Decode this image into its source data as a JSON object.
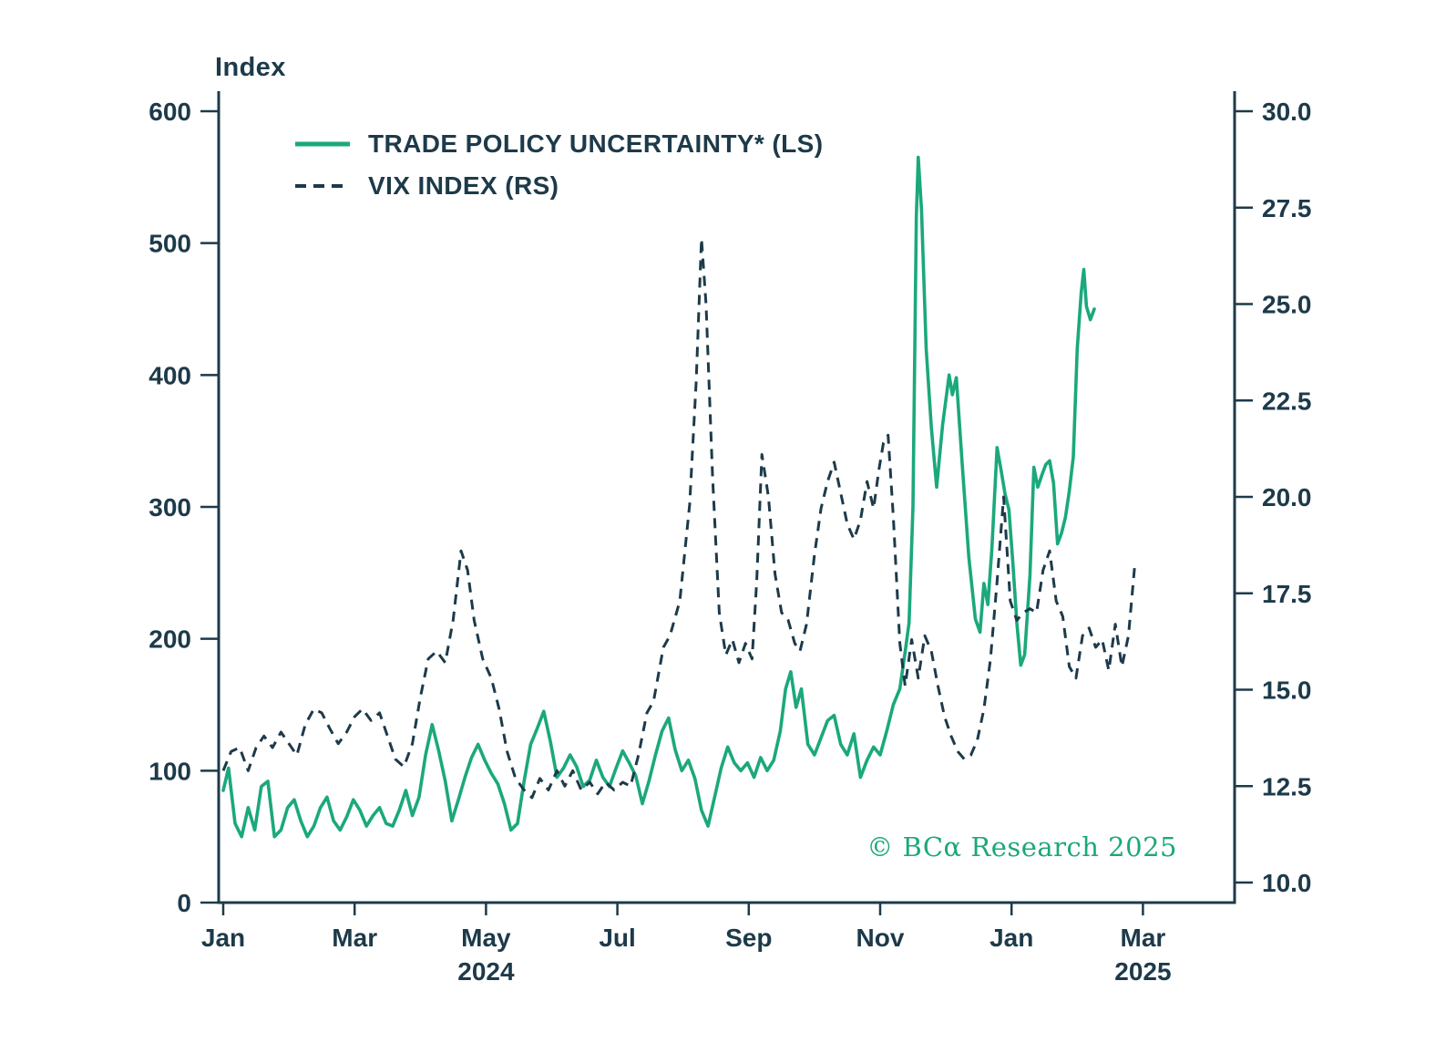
{
  "header": {
    "y_axis_title": "Index"
  },
  "footer": {
    "copyright": "© BCα Research 2025"
  },
  "colors": {
    "ink": "#1d3a4a",
    "green": "#1ba87c"
  },
  "chart_data": {
    "type": "line",
    "title": "",
    "xlabel": "",
    "ylabel_left": "Index",
    "grid": false,
    "legend_position": "top-left-inside",
    "x_axis": {
      "unit": "months from Jan 2024",
      "range_months": [
        0,
        15.4
      ],
      "ticks": [
        {
          "label": "Jan",
          "month": 0,
          "year": ""
        },
        {
          "label": "Mar",
          "month": 2,
          "year": ""
        },
        {
          "label": "May",
          "month": 4,
          "year": "2024"
        },
        {
          "label": "Jul",
          "month": 6,
          "year": ""
        },
        {
          "label": "Sep",
          "month": 8,
          "year": ""
        },
        {
          "label": "Nov",
          "month": 10,
          "year": ""
        },
        {
          "label": "Jan",
          "month": 12,
          "year": ""
        },
        {
          "label": "Mar",
          "month": 14,
          "year": "2025"
        }
      ]
    },
    "left_axis": {
      "title": "Index",
      "range": [
        0,
        600
      ],
      "ticks": [
        "0",
        "100",
        "200",
        "300",
        "400",
        "500",
        "600"
      ]
    },
    "right_axis": {
      "title": "",
      "range": [
        10,
        30
      ],
      "ticks": [
        "10.0",
        "12.5",
        "15.0",
        "17.5",
        "20.0",
        "22.5",
        "25.0",
        "27.5",
        "30.0"
      ]
    },
    "series": [
      {
        "name": "TRADE POLICY UNCERTAINTY* (LS)",
        "axis": "left",
        "style": "solid",
        "color": "#1ba87c",
        "points": [
          [
            0,
            85
          ],
          [
            0.08,
            102
          ],
          [
            0.18,
            60
          ],
          [
            0.28,
            50
          ],
          [
            0.38,
            72
          ],
          [
            0.48,
            55
          ],
          [
            0.58,
            88
          ],
          [
            0.68,
            92
          ],
          [
            0.78,
            50
          ],
          [
            0.88,
            55
          ],
          [
            0.98,
            72
          ],
          [
            1.08,
            78
          ],
          [
            1.18,
            62
          ],
          [
            1.28,
            50
          ],
          [
            1.38,
            58
          ],
          [
            1.48,
            72
          ],
          [
            1.58,
            80
          ],
          [
            1.68,
            62
          ],
          [
            1.78,
            55
          ],
          [
            1.88,
            65
          ],
          [
            1.98,
            78
          ],
          [
            2.08,
            70
          ],
          [
            2.18,
            58
          ],
          [
            2.28,
            66
          ],
          [
            2.38,
            72
          ],
          [
            2.48,
            60
          ],
          [
            2.58,
            58
          ],
          [
            2.68,
            70
          ],
          [
            2.78,
            85
          ],
          [
            2.88,
            66
          ],
          [
            2.98,
            80
          ],
          [
            3.08,
            112
          ],
          [
            3.18,
            135
          ],
          [
            3.28,
            115
          ],
          [
            3.38,
            92
          ],
          [
            3.48,
            62
          ],
          [
            3.58,
            78
          ],
          [
            3.68,
            95
          ],
          [
            3.78,
            110
          ],
          [
            3.88,
            120
          ],
          [
            3.98,
            108
          ],
          [
            4.08,
            98
          ],
          [
            4.18,
            90
          ],
          [
            4.28,
            75
          ],
          [
            4.38,
            55
          ],
          [
            4.48,
            60
          ],
          [
            4.58,
            92
          ],
          [
            4.68,
            120
          ],
          [
            4.78,
            132
          ],
          [
            4.88,
            145
          ],
          [
            4.98,
            122
          ],
          [
            5.08,
            95
          ],
          [
            5.18,
            102
          ],
          [
            5.28,
            112
          ],
          [
            5.38,
            103
          ],
          [
            5.48,
            88
          ],
          [
            5.58,
            93
          ],
          [
            5.68,
            108
          ],
          [
            5.78,
            95
          ],
          [
            5.88,
            88
          ],
          [
            5.98,
            102
          ],
          [
            6.08,
            115
          ],
          [
            6.18,
            106
          ],
          [
            6.28,
            96
          ],
          [
            6.38,
            75
          ],
          [
            6.48,
            92
          ],
          [
            6.58,
            112
          ],
          [
            6.68,
            130
          ],
          [
            6.78,
            140
          ],
          [
            6.88,
            116
          ],
          [
            6.98,
            100
          ],
          [
            7.08,
            108
          ],
          [
            7.18,
            94
          ],
          [
            7.28,
            70
          ],
          [
            7.38,
            58
          ],
          [
            7.48,
            80
          ],
          [
            7.58,
            102
          ],
          [
            7.68,
            118
          ],
          [
            7.78,
            106
          ],
          [
            7.88,
            100
          ],
          [
            7.98,
            106
          ],
          [
            8.08,
            95
          ],
          [
            8.18,
            110
          ],
          [
            8.28,
            100
          ],
          [
            8.38,
            108
          ],
          [
            8.48,
            130
          ],
          [
            8.56,
            162
          ],
          [
            8.64,
            175
          ],
          [
            8.72,
            148
          ],
          [
            8.8,
            162
          ],
          [
            8.9,
            120
          ],
          [
            9,
            112
          ],
          [
            9.1,
            125
          ],
          [
            9.2,
            138
          ],
          [
            9.3,
            142
          ],
          [
            9.4,
            120
          ],
          [
            9.5,
            112
          ],
          [
            9.6,
            128
          ],
          [
            9.7,
            95
          ],
          [
            9.8,
            108
          ],
          [
            9.9,
            118
          ],
          [
            10,
            112
          ],
          [
            10.1,
            130
          ],
          [
            10.2,
            150
          ],
          [
            10.3,
            162
          ],
          [
            10.38,
            190
          ],
          [
            10.44,
            212
          ],
          [
            10.5,
            300
          ],
          [
            10.55,
            520
          ],
          [
            10.58,
            565
          ],
          [
            10.63,
            525
          ],
          [
            10.7,
            420
          ],
          [
            10.78,
            360
          ],
          [
            10.86,
            315
          ],
          [
            10.95,
            362
          ],
          [
            11.05,
            400
          ],
          [
            11.1,
            385
          ],
          [
            11.16,
            398
          ],
          [
            11.25,
            332
          ],
          [
            11.35,
            262
          ],
          [
            11.45,
            215
          ],
          [
            11.52,
            205
          ],
          [
            11.58,
            242
          ],
          [
            11.64,
            226
          ],
          [
            11.7,
            268
          ],
          [
            11.78,
            345
          ],
          [
            11.84,
            328
          ],
          [
            11.9,
            310
          ],
          [
            11.96,
            298
          ],
          [
            12.02,
            258
          ],
          [
            12.08,
            212
          ],
          [
            12.14,
            180
          ],
          [
            12.2,
            188
          ],
          [
            12.28,
            248
          ],
          [
            12.34,
            330
          ],
          [
            12.4,
            315
          ],
          [
            12.46,
            324
          ],
          [
            12.52,
            332
          ],
          [
            12.58,
            335
          ],
          [
            12.64,
            318
          ],
          [
            12.7,
            272
          ],
          [
            12.76,
            280
          ],
          [
            12.82,
            292
          ],
          [
            12.88,
            312
          ],
          [
            12.94,
            338
          ],
          [
            13,
            420
          ],
          [
            13.06,
            462
          ],
          [
            13.1,
            480
          ],
          [
            13.14,
            452
          ],
          [
            13.2,
            442
          ],
          [
            13.26,
            450
          ]
        ]
      },
      {
        "name": "VIX INDEX (RS)",
        "axis": "right",
        "style": "dashed",
        "color": "#1d3a4a",
        "points": [
          [
            0,
            12.9
          ],
          [
            0.12,
            13.4
          ],
          [
            0.25,
            13.5
          ],
          [
            0.38,
            12.9
          ],
          [
            0.5,
            13.5
          ],
          [
            0.62,
            13.8
          ],
          [
            0.75,
            13.5
          ],
          [
            0.88,
            13.9
          ],
          [
            1,
            13.6
          ],
          [
            1.12,
            13.3
          ],
          [
            1.25,
            14.1
          ],
          [
            1.38,
            14.5
          ],
          [
            1.5,
            14.4
          ],
          [
            1.62,
            14
          ],
          [
            1.75,
            13.6
          ],
          [
            1.88,
            13.9
          ],
          [
            2,
            14.3
          ],
          [
            2.12,
            14.5
          ],
          [
            2.25,
            14.2
          ],
          [
            2.38,
            14.4
          ],
          [
            2.5,
            13.8
          ],
          [
            2.62,
            13.2
          ],
          [
            2.75,
            13
          ],
          [
            2.88,
            13.6
          ],
          [
            3,
            14.8
          ],
          [
            3.12,
            15.8
          ],
          [
            3.25,
            16
          ],
          [
            3.38,
            15.7
          ],
          [
            3.5,
            16.8
          ],
          [
            3.62,
            18.6
          ],
          [
            3.72,
            18.1
          ],
          [
            3.82,
            16.8
          ],
          [
            3.95,
            15.8
          ],
          [
            4.08,
            15.3
          ],
          [
            4.2,
            14.5
          ],
          [
            4.32,
            13.4
          ],
          [
            4.45,
            12.7
          ],
          [
            4.58,
            12.4
          ],
          [
            4.7,
            12.2
          ],
          [
            4.82,
            12.7
          ],
          [
            4.95,
            12.4
          ],
          [
            5.08,
            12.9
          ],
          [
            5.2,
            12.5
          ],
          [
            5.32,
            12.9
          ],
          [
            5.45,
            12.4
          ],
          [
            5.58,
            12.6
          ],
          [
            5.7,
            12.3
          ],
          [
            5.82,
            12.6
          ],
          [
            5.95,
            12.4
          ],
          [
            6.08,
            12.6
          ],
          [
            6.2,
            12.5
          ],
          [
            6.32,
            13.3
          ],
          [
            6.45,
            14.4
          ],
          [
            6.55,
            14.7
          ],
          [
            6.7,
            16.1
          ],
          [
            6.8,
            16.4
          ],
          [
            6.95,
            17.3
          ],
          [
            7.1,
            19.8
          ],
          [
            7.2,
            23
          ],
          [
            7.28,
            26.7
          ],
          [
            7.35,
            25
          ],
          [
            7.45,
            20.5
          ],
          [
            7.55,
            17
          ],
          [
            7.65,
            15.9
          ],
          [
            7.75,
            16.3
          ],
          [
            7.85,
            15.7
          ],
          [
            7.95,
            16.2
          ],
          [
            8.05,
            15.8
          ],
          [
            8.12,
            17.8
          ],
          [
            8.2,
            21.1
          ],
          [
            8.3,
            20
          ],
          [
            8.4,
            18
          ],
          [
            8.5,
            17
          ],
          [
            8.6,
            16.8
          ],
          [
            8.7,
            16.2
          ],
          [
            8.78,
            16
          ],
          [
            8.88,
            16.7
          ],
          [
            9,
            18.5
          ],
          [
            9.1,
            19.7
          ],
          [
            9.2,
            20.4
          ],
          [
            9.3,
            20.9
          ],
          [
            9.4,
            20.1
          ],
          [
            9.5,
            19.3
          ],
          [
            9.6,
            18.9
          ],
          [
            9.7,
            19.4
          ],
          [
            9.8,
            20.4
          ],
          [
            9.9,
            19.7
          ],
          [
            9.98,
            20.7
          ],
          [
            10.05,
            21.4
          ],
          [
            10.12,
            21.6
          ],
          [
            10.2,
            19.5
          ],
          [
            10.3,
            16.2
          ],
          [
            10.38,
            15.1
          ],
          [
            10.48,
            16.3
          ],
          [
            10.58,
            15.3
          ],
          [
            10.68,
            16.4
          ],
          [
            10.78,
            16
          ],
          [
            10.88,
            15.1
          ],
          [
            10.98,
            14.3
          ],
          [
            11.08,
            13.8
          ],
          [
            11.18,
            13.4
          ],
          [
            11.28,
            13.2
          ],
          [
            11.38,
            13.3
          ],
          [
            11.48,
            13.7
          ],
          [
            11.58,
            14.5
          ],
          [
            11.68,
            15.8
          ],
          [
            11.78,
            17.8
          ],
          [
            11.88,
            20
          ],
          [
            11.98,
            17.3
          ],
          [
            12.08,
            16.8
          ],
          [
            12.18,
            17
          ],
          [
            12.28,
            17.1
          ],
          [
            12.38,
            17
          ],
          [
            12.48,
            18.1
          ],
          [
            12.58,
            18.6
          ],
          [
            12.68,
            17.3
          ],
          [
            12.78,
            16.9
          ],
          [
            12.88,
            15.6
          ],
          [
            12.98,
            15.3
          ],
          [
            13.08,
            16.4
          ],
          [
            13.18,
            16.6
          ],
          [
            13.28,
            16.1
          ],
          [
            13.38,
            16.3
          ],
          [
            13.48,
            15.5
          ],
          [
            13.58,
            16.7
          ],
          [
            13.68,
            15.6
          ],
          [
            13.78,
            16.4
          ],
          [
            13.88,
            18.3
          ]
        ]
      }
    ]
  }
}
